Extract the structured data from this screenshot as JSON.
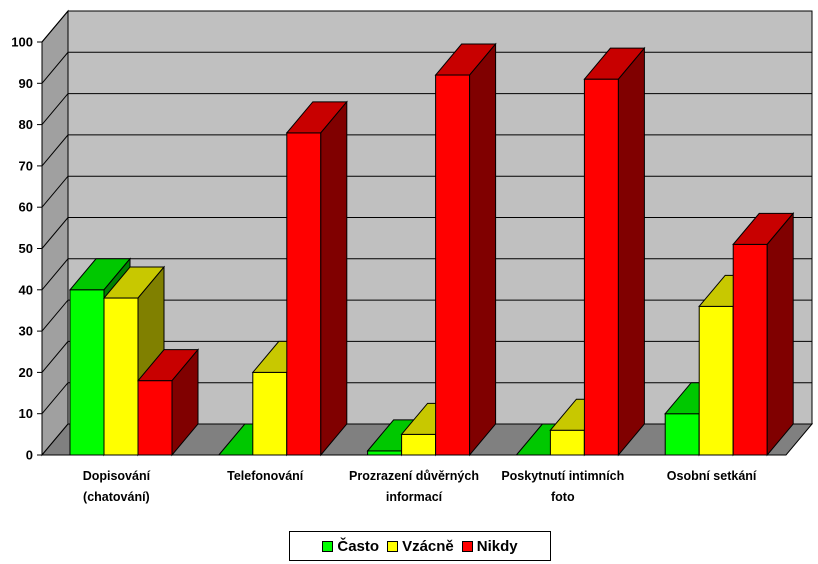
{
  "chart_data": {
    "type": "bar",
    "style": "3d-clustered-column",
    "categories": [
      [
        "Dopisování",
        "(chatování)"
      ],
      [
        "Telefonování"
      ],
      [
        "Prozrazení důvěrných",
        "informací"
      ],
      [
        "Poskytnutí intimních",
        "foto"
      ],
      [
        "Osobní setkání"
      ]
    ],
    "series": [
      {
        "name": "Často",
        "values": [
          40,
          0,
          1,
          0,
          10
        ],
        "color": "#00ff00",
        "top_color": "#00c800",
        "side_color": "#008000"
      },
      {
        "name": "Vzácně",
        "values": [
          38,
          20,
          5,
          6,
          36
        ],
        "color": "#ffff00",
        "top_color": "#c8c800",
        "side_color": "#808000"
      },
      {
        "name": "Nikdy",
        "values": [
          18,
          78,
          92,
          91,
          51
        ],
        "color": "#ff0000",
        "top_color": "#c80000",
        "side_color": "#800000"
      }
    ],
    "ylim": [
      0,
      100
    ],
    "y_ticks": [
      0,
      10,
      20,
      30,
      40,
      50,
      60,
      70,
      80,
      90,
      100
    ],
    "grid": true,
    "legend_position": "bottom",
    "wall_color": "#c0c0c0",
    "floor_color": "#808080"
  }
}
